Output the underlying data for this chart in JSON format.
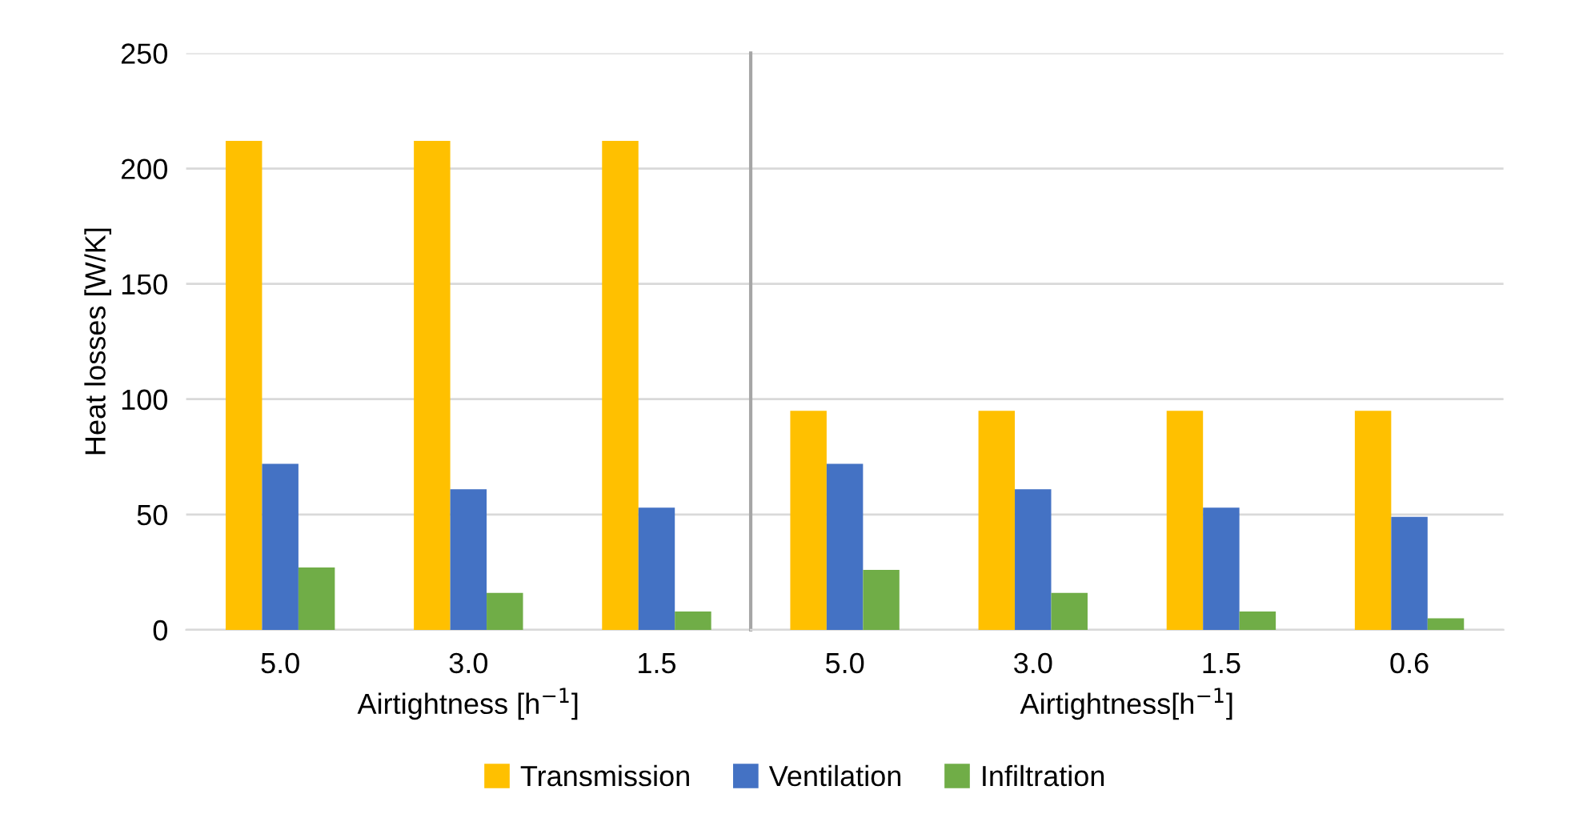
{
  "chart_data": [
    {
      "type": "bar",
      "ylabel": "Heat losses [W/K]",
      "xlabel": "Airtightness [h$^{−1}$]",
      "categories": [
        "5.0",
        "3.0",
        "1.5"
      ],
      "ylim": [
        0,
        250
      ],
      "yticks": [
        0,
        50,
        100,
        150,
        200,
        250
      ],
      "grid": "y",
      "legend": "bottom",
      "series": [
        {
          "name": "Transmission",
          "color": "#ffc000",
          "values": [
            212,
            212,
            212
          ]
        },
        {
          "name": "Ventilation",
          "color": "#4472c4",
          "values": [
            72,
            61,
            53
          ]
        },
        {
          "name": "Infiltration",
          "color": "#70ad47",
          "values": [
            27,
            16,
            8
          ]
        }
      ]
    },
    {
      "type": "bar",
      "xlabel": "Airtightness[h$^{−1}$]",
      "categories": [
        "5.0",
        "3.0",
        "1.5",
        "0.6"
      ],
      "ylim": [
        0,
        250
      ],
      "yticks": [
        0,
        50,
        100,
        150,
        200,
        250
      ],
      "grid": "y",
      "tick_labels": "x",
      "series": [
        {
          "color": "#ffc000",
          "values": [
            95,
            95,
            95,
            95
          ]
        },
        {
          "color": "#4472c4",
          "values": [
            72,
            61,
            53,
            49
          ]
        },
        {
          "color": "#70ad47",
          "values": [
            26,
            16,
            8,
            5
          ]
        }
      ]
    }
  ]
}
